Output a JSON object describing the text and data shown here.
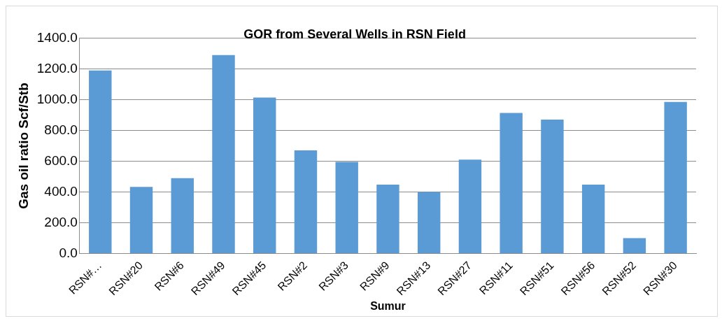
{
  "chart_data": {
    "type": "bar",
    "title": "GOR from Several Wells in RSN Field",
    "xlabel": "Sumur",
    "ylabel": "Gas oil ratio Scf/Stb",
    "categories": [
      "RSN#…",
      "RSN#20",
      "RSN#6",
      "RSN#49",
      "RSN#45",
      "RSN#2",
      "RSN#3",
      "RSN#9",
      "RSN#13",
      "RSN#27",
      "RSN#11",
      "RSN#51",
      "RSN#56",
      "RSN#52",
      "RSN#30"
    ],
    "values": [
      1190,
      433,
      490,
      1290,
      1014,
      671,
      595,
      448,
      400,
      610,
      914,
      871,
      448,
      100,
      986
    ],
    "color": "#5b9bd5",
    "ylim": [
      0,
      1400
    ],
    "yticks": [
      {
        "value": 0,
        "label": "0.0"
      },
      {
        "value": 200,
        "label": "200.0"
      },
      {
        "value": 400,
        "label": "400.0"
      },
      {
        "value": 600,
        "label": "600.0"
      },
      {
        "value": 800,
        "label": "800.0"
      },
      {
        "value": 1000,
        "label": "1000.0"
      },
      {
        "value": 1200,
        "label": "1200.0"
      },
      {
        "value": 1400,
        "label": "1400.0"
      }
    ],
    "grid": "y",
    "legend": false
  }
}
